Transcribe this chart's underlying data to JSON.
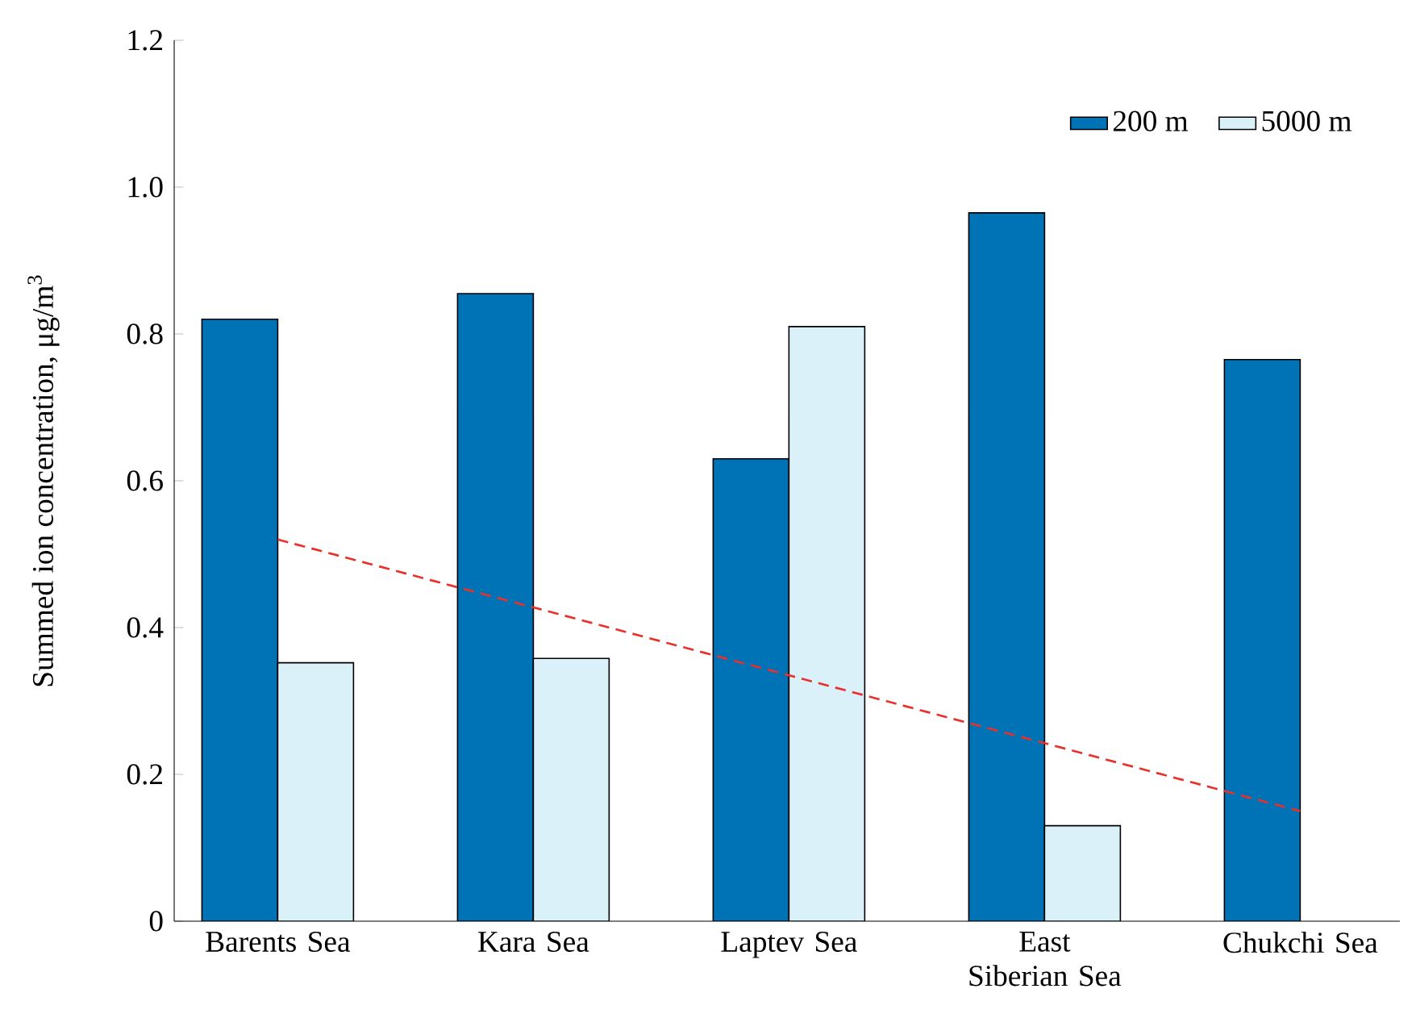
{
  "chart_data": {
    "type": "bar",
    "ylabel": "Summed ion concentration, μg/m$^{3}$",
    "categories": [
      "Barents Sea",
      "Kara Sea",
      "Laptev Sea",
      "East Siberian Sea",
      "Chukchi Sea"
    ],
    "series": [
      {
        "name": "200 m",
        "color": "#0073b7",
        "values": [
          0.82,
          0.855,
          0.63,
          0.965,
          0.765
        ]
      },
      {
        "name": "5000 m",
        "color": "#daf1f9",
        "values": [
          0.352,
          0.358,
          0.81,
          0.13,
          null
        ]
      },
      {
        "type": "line",
        "color": "#e8312a",
        "line_style": "dashed",
        "x": [
          "Barents Sea",
          "Chukchi Sea"
        ],
        "values": [
          0.52,
          0.15
        ]
      }
    ],
    "ylim": [
      0,
      1.2
    ],
    "yticks": [
      0,
      0.2,
      0.4,
      0.6,
      0.8,
      {
        "value": 1,
        "label": "1.0"
      },
      {
        "value": 1.2,
        "label": "1.2"
      }
    ],
    "legend": "top right",
    "grid": false
  }
}
